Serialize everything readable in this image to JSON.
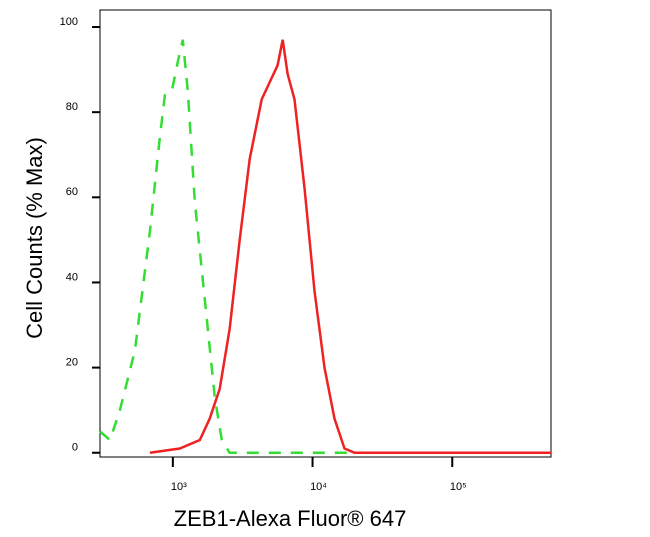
{
  "chart_data": {
    "type": "line",
    "xlabel": "ZEB1-Alexa Fluor® 647",
    "ylabel": "Cell Counts (% Max)",
    "xscale": "log",
    "xlim": [
      301,
      509000
    ],
    "ylim": [
      -1,
      104
    ],
    "xticks": [
      {
        "value": 1000,
        "label": "10³"
      },
      {
        "value": 10000,
        "label": "10⁴"
      },
      {
        "value": 100000,
        "label": "10⁵"
      }
    ],
    "yticks": [
      0,
      20,
      40,
      60,
      80,
      100
    ],
    "series": [
      {
        "color": "#33dd33",
        "dash": true,
        "x": [
          301,
          355,
          418,
          535,
          685,
          807,
          877,
          984,
          1086,
          1179,
          1280,
          1436,
          1693,
          1995,
          2240,
          2550,
          4180,
          18400,
          95300,
          509000
        ],
        "values": [
          5,
          3,
          10,
          24,
          52,
          74,
          84,
          85,
          92,
          97,
          85,
          59,
          36,
          13,
          3,
          0,
          0,
          0,
          0,
          0
        ]
      },
      {
        "color": "#ee2222",
        "dash": false,
        "x": [
          685,
          1122,
          1560,
          1837,
          2165,
          2550,
          3010,
          3550,
          4325,
          5090,
          5620,
          6110,
          6630,
          7430,
          8770,
          10330,
          12180,
          14360,
          16940,
          19950,
          509000
        ],
        "values": [
          0,
          1,
          3,
          8,
          15,
          29,
          50,
          69,
          83,
          88,
          91,
          97,
          89,
          83,
          62,
          38,
          20,
          8,
          1,
          0,
          0
        ]
      }
    ]
  }
}
